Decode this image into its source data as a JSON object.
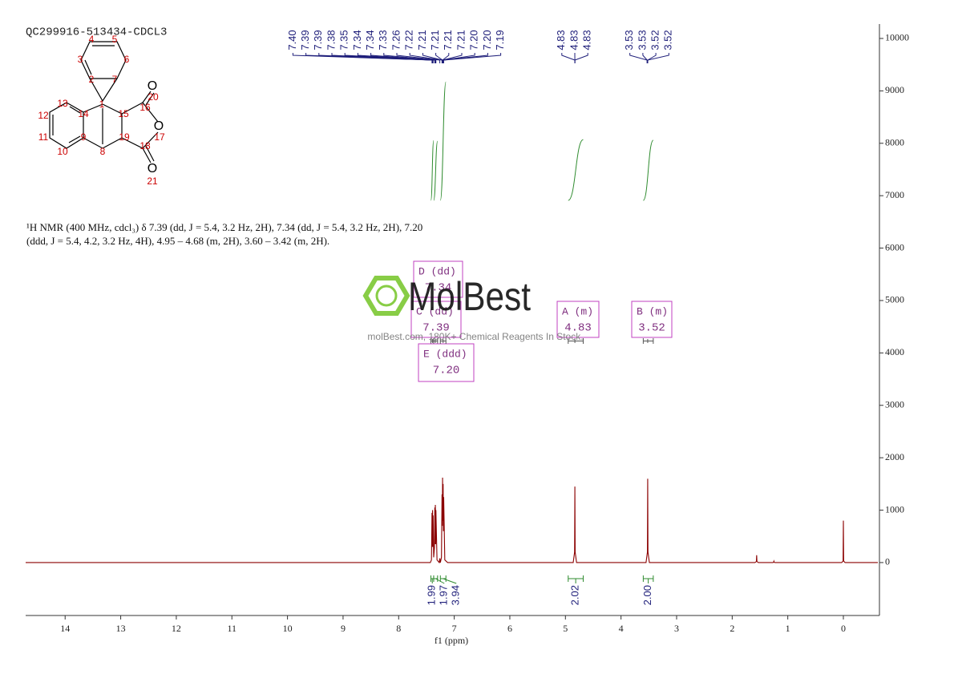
{
  "chart_data": {
    "type": "nmr",
    "title": "QC299916-513434-CDCL3",
    "description": [
      "¹H NMR (400 MHz, cdcl₃) δ 7.39 (dd, J = 5.4, 3.2 Hz, 2H), 7.34 (dd, J = 5.4, 3.2 Hz, 2H), 7.20",
      "(ddd, J = 5.4, 4.2, 3.2 Hz, 4H), 4.95 – 4.68 (m, 2H), 3.60 – 3.42 (m, 2H)."
    ],
    "xlabel": "f1 (ppm)",
    "xlim": [
      14.71,
      -0.62
    ],
    "xticks": [
      14,
      13,
      12,
      11,
      10,
      9,
      8,
      7,
      6,
      5,
      4,
      3,
      2,
      1,
      0
    ],
    "ylim": [
      -1010,
      10275
    ],
    "yticks": [
      0,
      1000,
      2000,
      3000,
      4000,
      5000,
      6000,
      7000,
      8000,
      9000,
      10000
    ],
    "spectrum": {
      "color": "#8b0000",
      "x": [
        14.71,
        7.43,
        7.41,
        7.4,
        7.395,
        7.39,
        7.385,
        7.38,
        7.37,
        7.355,
        7.35,
        7.345,
        7.34,
        7.335,
        7.33,
        7.31,
        7.27,
        7.26,
        7.25,
        7.23,
        7.22,
        7.215,
        7.21,
        7.205,
        7.2,
        7.195,
        7.19,
        7.17,
        7.12,
        4.86,
        4.835,
        4.83,
        4.825,
        4.8,
        3.55,
        3.525,
        3.52,
        3.515,
        3.49,
        1.59,
        1.565,
        1.56,
        1.555,
        1.53,
        1.27,
        1.255,
        1.25,
        1.245,
        1.23,
        0.03,
        0.005,
        0.0,
        -0.005,
        -0.03,
        -0.62
      ],
      "values": [
        0,
        0,
        50,
        950,
        300,
        1000,
        300,
        900,
        100,
        300,
        1050,
        350,
        1100,
        350,
        1000,
        50,
        0,
        80,
        0,
        100,
        1300,
        700,
        1620,
        800,
        1500,
        600,
        1250,
        50,
        0,
        0,
        200,
        1450,
        200,
        0,
        0,
        200,
        1600,
        200,
        0,
        0,
        20,
        140,
        20,
        0,
        0,
        5,
        25,
        5,
        0,
        0,
        30,
        800,
        30,
        0,
        0
      ]
    },
    "peak_labels": [
      [
        {
          "value": 7.4,
          "label": "7.40"
        },
        7.39,
        7.39,
        7.38,
        7.35,
        7.34,
        7.34,
        7.33,
        7.26,
        7.22,
        7.21,
        7.21,
        7.21,
        7.21,
        {
          "value": 7.2,
          "label": "7.20"
        },
        {
          "value": 7.2,
          "label": "7.20"
        },
        7.19
      ],
      [
        4.83,
        4.83,
        4.83
      ],
      [
        3.53,
        3.53,
        3.52,
        3.52
      ]
    ],
    "peak_color": "#1f1f7a",
    "integrals": {
      "color": "#2e8b2e",
      "ranges": [
        [
          7.42,
          7.37
        ],
        [
          7.37,
          7.3
        ],
        [
          7.25,
          7.15
        ],
        [
          4.95,
          4.68
        ],
        [
          3.6,
          3.42
        ]
      ],
      "values": [
        1.99,
        1.97,
        3.94,
        2.02,
        2.0
      ],
      "value_labels": [
        "1.99",
        "1.97",
        "3.94",
        "2.02",
        "2.00"
      ]
    },
    "multiplets": {
      "color": "#c040c0",
      "names": [
        "A (m)",
        "B (m)",
        "C (dd)",
        "D (dd)",
        "E (ddd)"
      ],
      "values": [
        4.83,
        3.52,
        7.39,
        7.34,
        7.2
      ],
      "value_labels": [
        "4.83",
        "3.52",
        "7.39",
        "7.34",
        "7.20"
      ],
      "ranges": [
        [
          4.95,
          4.68
        ],
        [
          3.6,
          3.42
        ],
        [
          7.42,
          7.37
        ],
        [
          7.37,
          7.3
        ],
        [
          7.25,
          7.15
        ]
      ]
    }
  },
  "watermark": {
    "brand": "MolBest",
    "tagline": "molBest.com, 180K+ Chemical Reagents In Stock."
  },
  "structure": {
    "atoms": [
      "4",
      "5",
      "3",
      "6",
      "2",
      "7",
      "1",
      "13",
      "14",
      "12",
      "11",
      "9",
      "10",
      "8",
      "15",
      "16",
      "19",
      "18",
      "20",
      "17",
      "21",
      "O",
      "O",
      "O"
    ]
  }
}
